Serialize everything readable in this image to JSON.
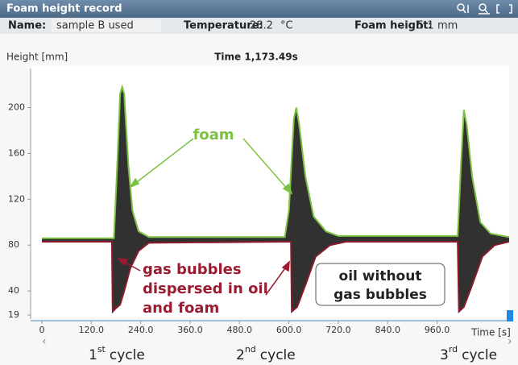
{
  "header": {
    "title": "Foam height record"
  },
  "info": {
    "name_label": "Name:",
    "name": "sample B used",
    "temperature_label": "Temperature:",
    "temperature": "28.2",
    "temperature_unit": "°C",
    "foam_label": "Foam height:",
    "foam_height": "5.1",
    "foam_unit": "mm"
  },
  "chart_data": {
    "type": "line",
    "y_label": "Height [mm]",
    "x_label": "Time [s]",
    "cursor": "Time 1,173.49s",
    "xlim": [
      0,
      1135
    ],
    "ylim": [
      19,
      232
    ],
    "xticks": [
      0,
      {
        "value": 120,
        "label": "120.0"
      },
      {
        "value": 240,
        "label": "240.0"
      },
      {
        "value": 360,
        "label": "360.0"
      },
      {
        "value": 480,
        "label": "480.0"
      },
      {
        "value": 600,
        "label": "600.0"
      },
      {
        "value": 720,
        "label": "720.0"
      },
      {
        "value": 840,
        "label": "840.0"
      },
      {
        "value": 960,
        "label": "960.0"
      }
    ],
    "yticks": [
      19,
      40,
      80,
      120,
      160,
      200
    ],
    "series": [
      {
        "name": "foam",
        "color": "#7cc242",
        "x": [
          0,
          165,
          175,
          183,
          190,
          195,
          200,
          210,
          220,
          235,
          260,
          590,
          600,
          612,
          618,
          625,
          640,
          660,
          690,
          720,
          1010,
          1018,
          1025,
          1032,
          1045,
          1065,
          1090,
          1135
        ],
        "values": [
          86,
          86,
          86,
          150,
          212,
          218,
          212,
          150,
          110,
          92,
          87,
          87,
          110,
          190,
          200,
          185,
          140,
          105,
          92,
          88,
          88,
          150,
          198,
          185,
          140,
          100,
          90,
          87
        ]
      },
      {
        "name": "oil",
        "color": "#8b1a2b",
        "x": [
          0,
          165,
          170,
          172,
          180,
          190,
          200,
          215,
          235,
          260,
          600,
          605,
          607,
          620,
          640,
          665,
          700,
          740,
          1010,
          1013,
          1025,
          1045,
          1070,
          1100,
          1135
        ],
        "values": [
          83,
          83,
          83,
          22,
          25,
          28,
          40,
          60,
          75,
          82,
          83,
          83,
          22,
          26,
          45,
          70,
          80,
          83,
          83,
          22,
          26,
          45,
          70,
          80,
          83
        ]
      }
    ],
    "annotations": {
      "foam": "foam",
      "gas": [
        "gas bubbles",
        "dispersed in oil",
        "and foam"
      ],
      "oil": [
        "oil without",
        "gas bubbles"
      ]
    },
    "cycles": [
      {
        "number": "1",
        "suffix": "st",
        "word": "cycle"
      },
      {
        "number": "2",
        "suffix": "nd",
        "word": "cycle"
      },
      {
        "number": "3",
        "suffix": "rd",
        "word": "cycle"
      }
    ]
  }
}
